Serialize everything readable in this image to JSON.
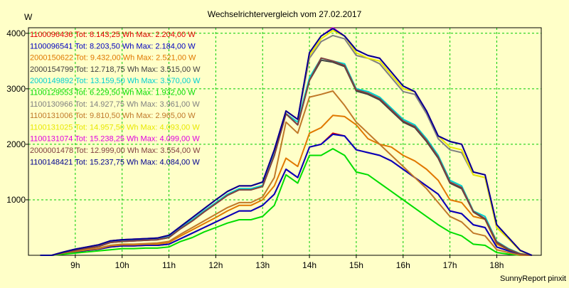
{
  "chart_data": {
    "type": "line",
    "title": "Wechselrichtervergleich vom 27.02.2017",
    "ylabel": "W",
    "xlabel": "",
    "footer": "SunnyReport pinxit",
    "xlim": [
      8.0,
      18.95
    ],
    "ylim": [
      0,
      4100
    ],
    "grid": true,
    "legend_position": "top-left",
    "x_ticks": [
      9,
      10,
      11,
      12,
      13,
      14,
      15,
      16,
      17,
      18
    ],
    "x_tick_labels": [
      "9h",
      "10h",
      "11h",
      "12h",
      "13h",
      "14h",
      "15h",
      "16h",
      "17h",
      "18h"
    ],
    "y_ticks": [
      1000,
      2000,
      3000,
      4000
    ],
    "y_tick_labels": [
      "1000",
      "2000",
      "3000",
      "4000"
    ],
    "x": [
      8.25,
      8.5,
      8.75,
      9.0,
      9.25,
      9.5,
      9.75,
      10.0,
      10.25,
      10.5,
      10.75,
      11.0,
      11.25,
      11.5,
      11.75,
      12.0,
      12.25,
      12.5,
      12.75,
      13.0,
      13.25,
      13.5,
      13.75,
      14.0,
      14.25,
      14.5,
      14.75,
      15.0,
      15.25,
      15.5,
      15.75,
      16.0,
      16.25,
      16.5,
      16.75,
      17.0,
      17.25,
      17.5,
      17.75,
      18.0,
      18.25,
      18.5,
      18.75
    ],
    "series": [
      {
        "name": "1100096436 Tot: 8.143,25 Wh Max: 2.204,00 W",
        "color": "#e00000",
        "values": [
          0,
          0,
          30,
          60,
          90,
          110,
          150,
          170,
          170,
          180,
          180,
          200,
          300,
          400,
          500,
          600,
          700,
          800,
          800,
          900,
          1100,
          1550,
          1400,
          1950,
          2000,
          2200,
          2150,
          1900,
          1850,
          1800,
          1700,
          1550,
          1400,
          1250,
          1100,
          800,
          750,
          550,
          500,
          150,
          80,
          20,
          0
        ]
      },
      {
        "name": "1100096541 Tot: 8.203,50 Wh Max: 2.184,00 W",
        "color": "#0000c0",
        "values": [
          0,
          0,
          30,
          60,
          90,
          110,
          150,
          170,
          170,
          180,
          180,
          200,
          300,
          400,
          500,
          600,
          700,
          800,
          800,
          900,
          1100,
          1550,
          1400,
          1950,
          2000,
          2180,
          2150,
          1900,
          1850,
          1800,
          1700,
          1550,
          1400,
          1250,
          1100,
          800,
          750,
          550,
          500,
          150,
          80,
          20,
          0
        ]
      },
      {
        "name": "2000150622 Tot: 9.432,00 Wh Max: 2.521,00 W",
        "color": "#e07800",
        "values": [
          0,
          0,
          40,
          70,
          100,
          120,
          170,
          190,
          190,
          200,
          200,
          230,
          350,
          460,
          570,
          680,
          800,
          900,
          900,
          1000,
          1250,
          1750,
          1600,
          2200,
          2300,
          2520,
          2500,
          2350,
          2100,
          2000,
          1950,
          1800,
          1700,
          1550,
          1350,
          1000,
          950,
          700,
          650,
          200,
          100,
          30,
          0
        ]
      },
      {
        "name": "2000154799 Tot: 12.718,75 Wh Max: 3.515,00 W",
        "color": "#404040",
        "values": [
          0,
          0,
          50,
          90,
          130,
          160,
          230,
          250,
          260,
          270,
          280,
          320,
          480,
          620,
          780,
          930,
          1080,
          1180,
          1180,
          1240,
          1800,
          2550,
          2350,
          3150,
          3515,
          3480,
          3400,
          2960,
          2900,
          2800,
          2600,
          2400,
          2300,
          2050,
          1750,
          1300,
          1200,
          780,
          650,
          230,
          100,
          20,
          0
        ]
      },
      {
        "name": "2000149892 Tot: 13.159,50 Wh Max: 3.570,00 W",
        "color": "#00d0d0",
        "values": [
          0,
          0,
          50,
          100,
          140,
          170,
          240,
          260,
          270,
          280,
          290,
          330,
          500,
          640,
          800,
          950,
          1100,
          1200,
          1200,
          1260,
          1850,
          2550,
          2400,
          3200,
          3550,
          3500,
          3450,
          3000,
          2950,
          2850,
          2650,
          2450,
          2350,
          2100,
          1800,
          1350,
          1250,
          800,
          700,
          250,
          120,
          30,
          0
        ]
      },
      {
        "name": "1100129553 Tot: 6.229,50 Wh Max: 1.932,00 W",
        "color": "#00dd00",
        "values": [
          0,
          0,
          20,
          40,
          60,
          80,
          100,
          120,
          120,
          130,
          130,
          150,
          250,
          320,
          420,
          500,
          580,
          640,
          640,
          700,
          900,
          1450,
          1300,
          1800,
          1800,
          1920,
          1800,
          1500,
          1450,
          1300,
          1150,
          1000,
          850,
          700,
          550,
          420,
          350,
          200,
          180,
          50,
          20,
          0,
          0
        ]
      },
      {
        "name": "1100130966 Tot: 14.927,75 Wh Max: 3.961,00 W",
        "color": "#808080",
        "values": [
          0,
          0,
          60,
          110,
          150,
          190,
          260,
          280,
          290,
          300,
          310,
          360,
          520,
          680,
          840,
          1000,
          1150,
          1250,
          1250,
          1320,
          1900,
          2600,
          2450,
          3550,
          3850,
          3960,
          3900,
          3600,
          3550,
          3450,
          3200,
          2950,
          2900,
          2550,
          2100,
          1900,
          1850,
          1450,
          1400,
          500,
          300,
          80,
          0
        ]
      },
      {
        "name": "1100131006 Tot: 9.810,50 Wh Max: 2.965,00 W",
        "color": "#c07828",
        "values": [
          0,
          0,
          40,
          80,
          110,
          130,
          180,
          200,
          200,
          210,
          220,
          250,
          380,
          500,
          620,
          740,
          860,
          950,
          950,
          1050,
          1400,
          2400,
          2200,
          2850,
          2900,
          2960,
          2700,
          2400,
          2200,
          2000,
          1800,
          1600,
          1400,
          1200,
          950,
          700,
          600,
          400,
          350,
          100,
          50,
          0,
          0
        ]
      },
      {
        "name": "1100131025 Tot: 14.957,50 Wh Max: 4.093,00 W",
        "color": "#e8e800",
        "values": [
          0,
          0,
          60,
          110,
          150,
          190,
          260,
          280,
          290,
          300,
          310,
          360,
          520,
          680,
          840,
          1000,
          1150,
          1250,
          1250,
          1320,
          1900,
          2600,
          2450,
          3600,
          3900,
          4050,
          3950,
          3650,
          3550,
          3500,
          3250,
          3000,
          2950,
          2600,
          2150,
          1950,
          1900,
          1450,
          1400,
          500,
          300,
          80,
          0
        ]
      },
      {
        "name": "1100131074 Tot: 15.238,25 Wh Max: 4.099,00 W",
        "color": "#e000e0",
        "values": [
          0,
          0,
          60,
          110,
          150,
          190,
          260,
          280,
          290,
          300,
          310,
          360,
          520,
          680,
          840,
          1000,
          1150,
          1250,
          1250,
          1320,
          1900,
          2600,
          2450,
          3650,
          3950,
          4099,
          3950,
          3700,
          3600,
          3550,
          3300,
          3050,
          2950,
          2600,
          2150,
          2050,
          2000,
          1500,
          1450,
          550,
          320,
          90,
          0
        ]
      },
      {
        "name": "2000001478 Tot: 12.999,00 Wh Max: 3.554,00 W",
        "color": "#804040",
        "values": [
          0,
          0,
          50,
          90,
          130,
          160,
          230,
          250,
          260,
          270,
          280,
          320,
          480,
          620,
          780,
          930,
          1080,
          1180,
          1180,
          1240,
          1800,
          2550,
          2350,
          3150,
          3554,
          3500,
          3420,
          2980,
          2920,
          2820,
          2620,
          2420,
          2320,
          2070,
          1770,
          1320,
          1220,
          790,
          660,
          240,
          110,
          25,
          0
        ]
      },
      {
        "name": "1100148421 Tot: 15.237,75 Wh Max: 4.084,00 W",
        "color": "#000090",
        "values": [
          0,
          0,
          60,
          110,
          150,
          190,
          260,
          280,
          290,
          300,
          310,
          360,
          520,
          680,
          840,
          1000,
          1150,
          1250,
          1250,
          1320,
          1900,
          2600,
          2450,
          3650,
          3950,
          4084,
          3950,
          3700,
          3600,
          3550,
          3300,
          3050,
          2950,
          2600,
          2150,
          2050,
          2000,
          1500,
          1450,
          550,
          320,
          90,
          0
        ]
      }
    ]
  }
}
